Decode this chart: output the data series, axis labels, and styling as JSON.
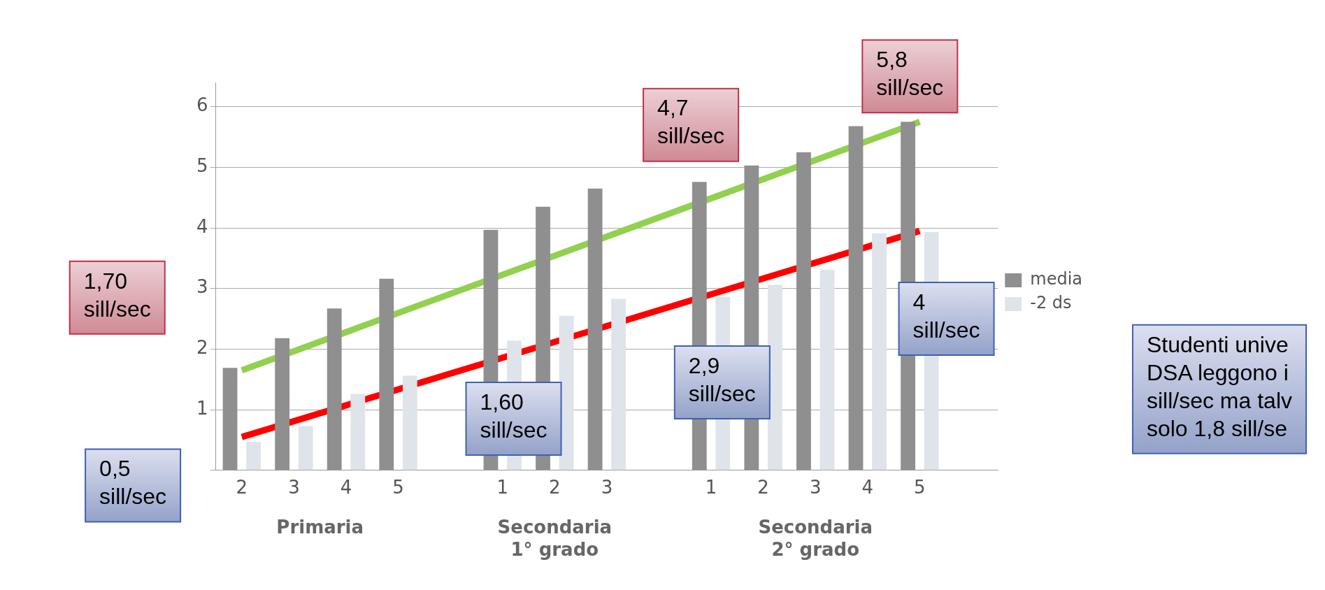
{
  "chart_data": {
    "type": "bar",
    "categories": [
      "2",
      "3",
      "4",
      "5",
      null,
      "1",
      "2",
      "3",
      null,
      "1",
      "2",
      "3",
      "4",
      "5",
      null
    ],
    "series": [
      {
        "name": "media",
        "color": "#8f8f8f",
        "values": [
          1.69,
          2.18,
          2.67,
          3.16,
          null,
          3.97,
          4.35,
          4.65,
          null,
          4.76,
          5.03,
          5.25,
          5.68,
          5.75,
          null
        ]
      },
      {
        "name": "-2 ds",
        "color": "#dfe4ea",
        "values": [
          0.47,
          0.73,
          1.26,
          1.56,
          null,
          2.14,
          2.55,
          2.83,
          null,
          2.86,
          3.06,
          3.31,
          3.91,
          3.93,
          null
        ]
      },
      {
        "type": "line",
        "color": "#92d050",
        "values": [
          1.65,
          null,
          null,
          null,
          null,
          null,
          null,
          null,
          null,
          null,
          null,
          null,
          null,
          5.75,
          null
        ]
      },
      {
        "type": "line",
        "color": "#ff0000",
        "values": [
          0.55,
          null,
          null,
          null,
          null,
          null,
          null,
          null,
          null,
          null,
          null,
          null,
          null,
          3.95,
          null
        ]
      }
    ],
    "ylim": [
      0,
      6.4
    ],
    "yticks": [
      {
        "value": 0,
        "label": null
      },
      1,
      2,
      3,
      4,
      5,
      6
    ],
    "grid": "y",
    "legend": "right",
    "marker": "none",
    "line_style": "solid",
    "annotations": [
      "Primaria",
      "Secondaria\n1° grado",
      "Secondaria\n2° grado",
      "1,70\nsill/sec",
      "0,5\nsill/sec",
      "1,60\nsill/sec",
      "2,9\nsill/sec",
      "4,7\nsill/sec",
      "5,8\nsill/sec",
      "4\nsill/sec",
      "Studenti unive\nDSA leggono i\nsill/sec ma talv\nsolo 1,8 sill/se"
    ]
  }
}
